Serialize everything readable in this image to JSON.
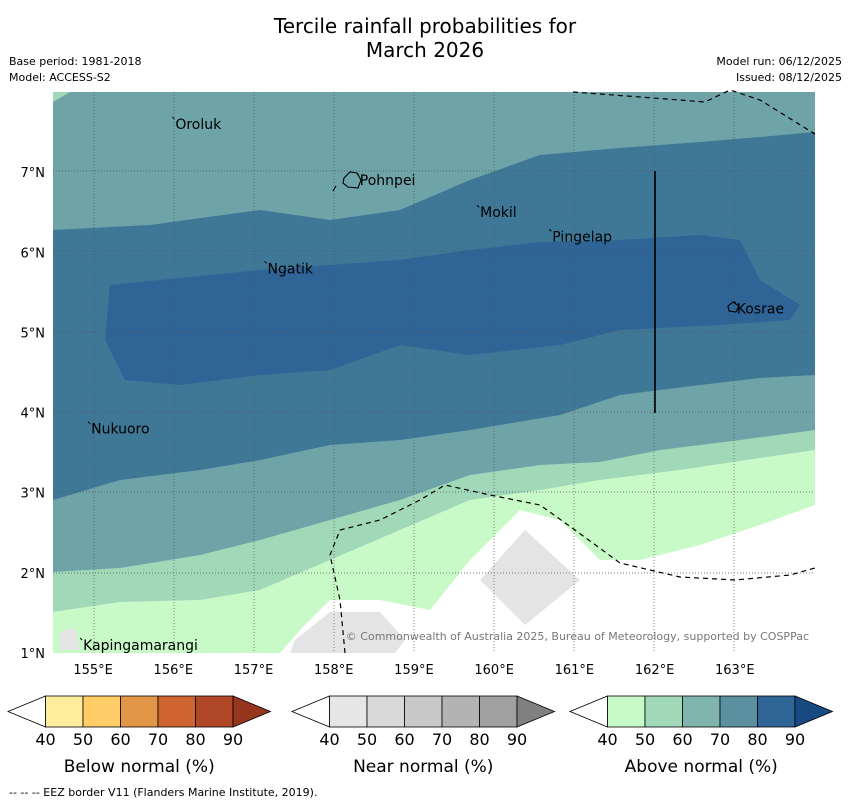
{
  "title_line1": "Tercile rainfall probabilities for",
  "title_line2": "March 2026",
  "base_period": "Base period: 1981-2018",
  "model": "Model: ACCESS-S2",
  "model_run": "Model run: 06/12/2025",
  "issued": "Issued: 08/12/2025",
  "copyright": "© Commonwealth of Australia 2025, Bureau of Meteorology, supported by COSPPac",
  "footnote": "--  --  -- EEZ border V11 (Flanders Marine Institute, 2019).",
  "map": {
    "lon_ticks": [
      "155°E",
      "156°E",
      "157°E",
      "158°E",
      "159°E",
      "160°E",
      "161°E",
      "162°E",
      "163°E"
    ],
    "lon_values": [
      155,
      156,
      157,
      158,
      159,
      160,
      161,
      162,
      163
    ],
    "lat_ticks": [
      "1°N",
      "2°N",
      "3°N",
      "4°N",
      "5°N",
      "6°N",
      "7°N"
    ],
    "lat_values": [
      1,
      2,
      3,
      4,
      5,
      6,
      7
    ],
    "lon_range": [
      154.5,
      164.0
    ],
    "lat_range": [
      1.0,
      8.0
    ],
    "places": [
      {
        "name": "Oroluk",
        "lon": 156.0,
        "lat": 7.6
      },
      {
        "name": "Pohnpei",
        "lon": 158.3,
        "lat": 6.9
      },
      {
        "name": "Mokil",
        "lon": 159.8,
        "lat": 6.5
      },
      {
        "name": "Pingelap",
        "lon": 160.7,
        "lat": 6.2
      },
      {
        "name": "Ngatik",
        "lon": 157.15,
        "lat": 5.8
      },
      {
        "name": "Kosrae",
        "lon": 163.0,
        "lat": 5.3
      },
      {
        "name": "Nukuoro",
        "lon": 154.95,
        "lat": 3.8
      },
      {
        "name": "Kapingamarangi",
        "lon": 154.85,
        "lat": 1.1
      }
    ]
  },
  "colorbars": [
    {
      "label": "Below normal (%)",
      "ticks": [
        "40",
        "50",
        "60",
        "70",
        "80",
        "90"
      ],
      "colors": [
        "#ffffff",
        "#ffed9e",
        "#ffcc66",
        "#e09646",
        "#cf6531",
        "#b04828",
        "#97361e"
      ]
    },
    {
      "label": "Near normal (%)",
      "ticks": [
        "40",
        "50",
        "60",
        "70",
        "80",
        "90"
      ],
      "colors": [
        "#ffffff",
        "#e6e6e6",
        "#d9d9d9",
        "#c8c8c8",
        "#b3b3b3",
        "#a0a0a0",
        "#808080"
      ]
    },
    {
      "label": "Above normal (%)",
      "ticks": [
        "40",
        "50",
        "60",
        "70",
        "80",
        "90"
      ],
      "colors": [
        "#ffffff",
        "#c8fac8",
        "#a0d8b8",
        "#80b5ad",
        "#5a90a0",
        "#2e6496",
        "#174a80"
      ]
    }
  ]
}
